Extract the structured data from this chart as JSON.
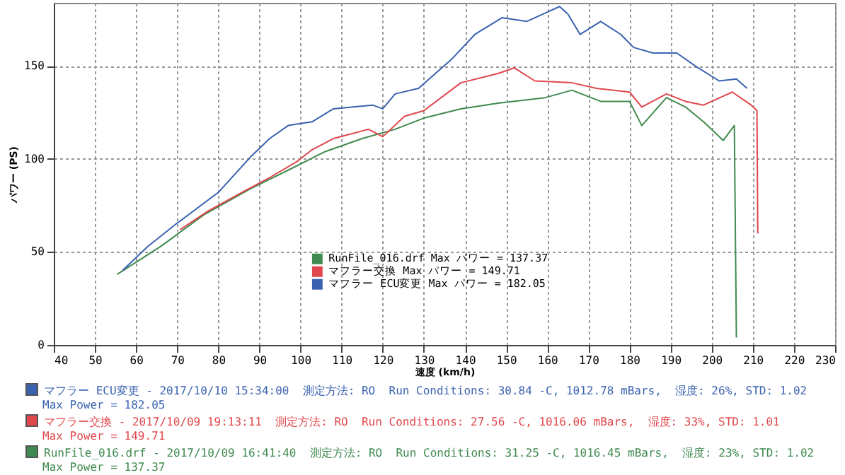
{
  "chart_data": {
    "type": "line",
    "xlabel": "速度 (km/h)",
    "ylabel": "パワー (PS)",
    "xlim": [
      40,
      230
    ],
    "xticks": [
      40,
      50,
      60,
      70,
      80,
      90,
      100,
      110,
      120,
      130,
      140,
      150,
      160,
      170,
      180,
      190,
      200,
      210,
      220,
      230
    ],
    "ylim": [
      0,
      184
    ],
    "yticks": [
      0,
      50,
      100,
      150
    ],
    "grid": true,
    "legend": "bottom",
    "marker": "none",
    "line_style": "solid",
    "series": [
      {
        "name": "RunFile_016.drf Max パワー = 137.37",
        "color": "#3f8a4f",
        "x": [
          55.4,
          66,
          76.5,
          87.8,
          97,
          106,
          115,
          123,
          130,
          139,
          148,
          159.5,
          166,
          173,
          180,
          183,
          189,
          193.6,
          198,
          202.8,
          205.5,
          206
        ],
        "values": [
          38,
          53,
          70,
          84,
          94,
          104,
          111,
          116,
          122,
          127,
          130,
          133,
          137,
          131,
          131,
          118,
          133,
          128,
          120,
          110,
          118,
          4
        ]
      },
      {
        "name": "マフラー交換 Max パワー = 149.71",
        "color": "#e0474c",
        "x": [
          70.7,
          77.5,
          85.7,
          92.5,
          99.4,
          102.8,
          108,
          116.5,
          120,
          125.3,
          130,
          139,
          148,
          152,
          157,
          166,
          172,
          180,
          183,
          189,
          193.6,
          198,
          205,
          209.6,
          211,
          211.2
        ],
        "values": [
          62,
          72,
          82,
          90,
          99,
          105,
          111,
          116,
          112,
          123,
          126,
          141,
          146,
          149,
          142,
          141,
          138,
          136,
          128,
          135,
          131,
          129,
          136,
          129,
          126,
          60
        ]
      },
      {
        "name": "マフラー ECU変更 Max パワー = 182.05",
        "color": "#3a62b0",
        "x": [
          56.7,
          62.9,
          69.7,
          80,
          87.8,
          92.5,
          97,
          102.8,
          108,
          117.5,
          120,
          123,
          128.7,
          136.9,
          142.4,
          149,
          155,
          163,
          165,
          168,
          173,
          177.9,
          181,
          185.7,
          191.5,
          196,
          201.8,
          206,
          208.6
        ],
        "values": [
          40,
          53,
          65,
          82,
          101,
          111,
          118,
          120,
          127,
          129,
          127,
          135,
          138,
          154,
          167,
          176,
          174,
          182,
          178,
          167,
          174,
          167,
          160,
          157,
          157,
          150,
          142,
          143,
          138
        ]
      }
    ],
    "annotations": [
      "マフラー ECU変更 - 2017/10/10 15:34:00  測定方法: RO  Run Conditions: 30.84 -C, 1012.78 mBars,  湿度: 26%, STD: 1.02",
      "Max Power = 182.05",
      "マフラー交換 - 2017/10/09 19:13:11  測定方法: RO  Run Conditions: 27.56 -C, 1016.06 mBars,  湿度: 33%, STD: 1.01",
      "Max Power = 149.71",
      "RunFile_016.drf - 2017/10/09 16:41:40  測定方法: RO  Run Conditions: 31.25 -C, 1016.45 mBars,  湿度: 23%, STD: 1.02",
      "Max Power = 137.37"
    ]
  }
}
